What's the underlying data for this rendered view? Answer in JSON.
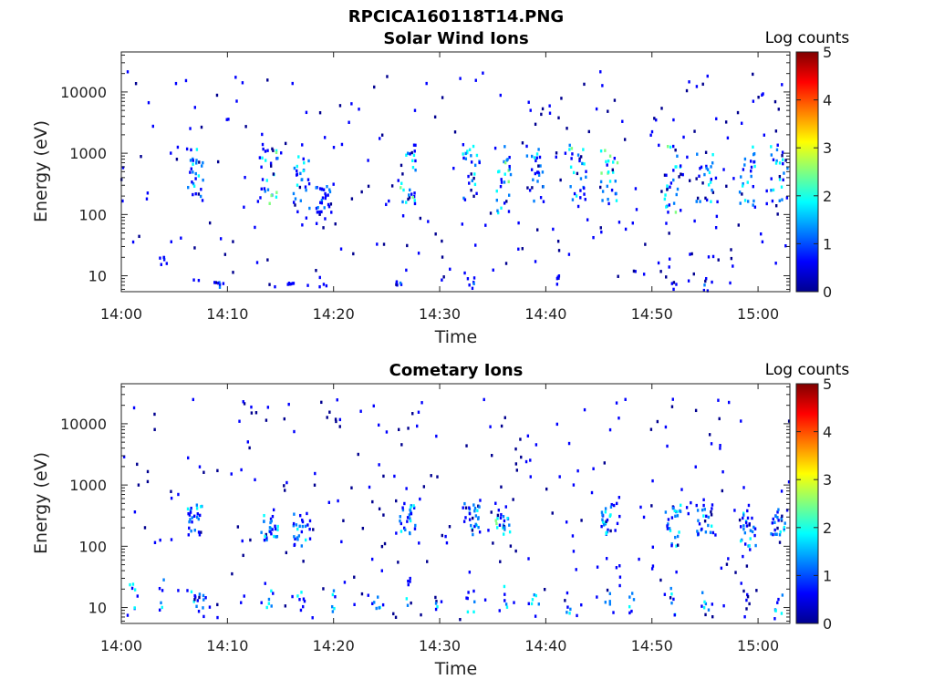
{
  "figure_title": "RPCICA160118T14.PNG",
  "colors": {
    "colormap": [
      "#00008f",
      "#0000ff",
      "#0080ff",
      "#00ffff",
      "#80ff80",
      "#ffff00",
      "#ff8000",
      "#ff0000",
      "#800000"
    ]
  },
  "chart_data": [
    {
      "type": "heatmap",
      "title": "Solar Wind Ions",
      "xlabel": "Time",
      "ylabel": "Energy (eV)",
      "yscale": "log",
      "ylim": [
        5.5,
        45000
      ],
      "xlim": [
        "14:00",
        "15:03"
      ],
      "xticks": [
        "14:00",
        "14:10",
        "14:20",
        "14:30",
        "14:40",
        "14:50",
        "15:00"
      ],
      "yticks": [
        "10",
        "100",
        "1000",
        "10000"
      ],
      "grid": false,
      "colorbar": {
        "label": "Log counts",
        "ticks": [
          "0",
          "1",
          "2",
          "3",
          "4",
          "5"
        ],
        "range": [
          0,
          5
        ]
      },
      "bursts": [
        {
          "t": "14:07",
          "e": [
            150,
            1400
          ],
          "peak": 1.5
        },
        {
          "t": "14:14",
          "e": [
            150,
            1400
          ],
          "peak": 2.2
        },
        {
          "t": "14:17",
          "e": [
            120,
            900
          ],
          "peak": 1.6
        },
        {
          "t": "14:19",
          "e": [
            100,
            300
          ],
          "peak": 1.0
        },
        {
          "t": "14:27",
          "e": [
            150,
            1500
          ],
          "peak": 2.3
        },
        {
          "t": "14:33",
          "e": [
            150,
            1400
          ],
          "peak": 1.8
        },
        {
          "t": "14:36",
          "e": [
            100,
            1400
          ],
          "peak": 2.6
        },
        {
          "t": "14:39",
          "e": [
            150,
            1200
          ],
          "peak": 1.5
        },
        {
          "t": "14:43",
          "e": [
            150,
            1400
          ],
          "peak": 2.0
        },
        {
          "t": "14:46",
          "e": [
            150,
            1200
          ],
          "peak": 2.5
        },
        {
          "t": "14:52",
          "e": [
            100,
            1400
          ],
          "peak": 2.4
        },
        {
          "t": "14:55",
          "e": [
            150,
            1200
          ],
          "peak": 1.8
        },
        {
          "t": "14:59",
          "e": [
            120,
            1400
          ],
          "peak": 1.8
        },
        {
          "t": "15:02",
          "e": [
            150,
            1400
          ],
          "peak": 1.8
        }
      ],
      "low_energy_events": [
        {
          "t": "14:04",
          "e": [
            15,
            20
          ]
        },
        {
          "t": "14:09",
          "e": [
            6,
            10
          ]
        },
        {
          "t": "14:16",
          "e": [
            7,
            8
          ]
        },
        {
          "t": "14:19",
          "e": [
            5,
            10
          ]
        },
        {
          "t": "14:26",
          "e": [
            7,
            8
          ]
        },
        {
          "t": "14:33",
          "e": [
            5,
            10
          ]
        },
        {
          "t": "14:41",
          "e": [
            6,
            10
          ]
        },
        {
          "t": "14:52",
          "e": [
            5,
            10
          ]
        },
        {
          "t": "14:55",
          "e": [
            5,
            10
          ]
        }
      ]
    },
    {
      "type": "heatmap",
      "title": "Cometary Ions",
      "xlabel": "Time",
      "ylabel": "Energy (eV)",
      "yscale": "log",
      "ylim": [
        5.5,
        45000
      ],
      "xlim": [
        "14:00",
        "15:03"
      ],
      "xticks": [
        "14:00",
        "14:10",
        "14:20",
        "14:30",
        "14:40",
        "14:50",
        "15:00"
      ],
      "yticks": [
        "10",
        "100",
        "1000",
        "10000"
      ],
      "grid": false,
      "colorbar": {
        "label": "Log counts",
        "ticks": [
          "0",
          "1",
          "2",
          "3",
          "4",
          "5"
        ],
        "range": [
          0,
          5
        ]
      },
      "bursts": [
        {
          "t": "14:07",
          "e": [
            150,
            500
          ],
          "peak": 1.5
        },
        {
          "t": "14:14",
          "e": [
            120,
            400
          ],
          "peak": 1.8
        },
        {
          "t": "14:17",
          "e": [
            100,
            400
          ],
          "peak": 1.5
        },
        {
          "t": "14:27",
          "e": [
            150,
            500
          ],
          "peak": 1.5
        },
        {
          "t": "14:33",
          "e": [
            150,
            500
          ],
          "peak": 1.5
        },
        {
          "t": "14:36",
          "e": [
            100,
            600
          ],
          "peak": 2.2
        },
        {
          "t": "14:46",
          "e": [
            150,
            500
          ],
          "peak": 2.0
        },
        {
          "t": "14:52",
          "e": [
            100,
            500
          ],
          "peak": 1.8
        },
        {
          "t": "14:55",
          "e": [
            150,
            500
          ],
          "peak": 1.5
        },
        {
          "t": "14:59",
          "e": [
            100,
            400
          ],
          "peak": 1.5
        },
        {
          "t": "15:02",
          "e": [
            150,
            400
          ],
          "peak": 1.5
        }
      ],
      "low_energy_events": [
        {
          "t": "14:01",
          "e": [
            8,
            25
          ]
        },
        {
          "t": "14:04",
          "e": [
            6,
            30
          ]
        },
        {
          "t": "14:07",
          "e": [
            10,
            20
          ]
        },
        {
          "t": "14:08",
          "e": [
            7,
            20
          ]
        },
        {
          "t": "14:14",
          "e": [
            10,
            20
          ]
        },
        {
          "t": "14:17",
          "e": [
            8,
            25
          ]
        },
        {
          "t": "14:20",
          "e": [
            8,
            20
          ]
        },
        {
          "t": "14:24",
          "e": [
            7,
            25
          ]
        },
        {
          "t": "14:27",
          "e": [
            8,
            40
          ]
        },
        {
          "t": "14:30",
          "e": [
            8,
            20
          ]
        },
        {
          "t": "14:33",
          "e": [
            8,
            20
          ]
        },
        {
          "t": "14:36",
          "e": [
            8,
            25
          ]
        },
        {
          "t": "14:39",
          "e": [
            7,
            20
          ]
        },
        {
          "t": "14:42",
          "e": [
            8,
            20
          ]
        },
        {
          "t": "14:46",
          "e": [
            8,
            20
          ]
        },
        {
          "t": "14:48",
          "e": [
            8,
            20
          ]
        },
        {
          "t": "14:52",
          "e": [
            7,
            25
          ]
        },
        {
          "t": "14:55",
          "e": [
            8,
            20
          ]
        },
        {
          "t": "14:59",
          "e": [
            7,
            20
          ]
        },
        {
          "t": "15:02",
          "e": [
            8,
            20
          ]
        }
      ]
    }
  ]
}
